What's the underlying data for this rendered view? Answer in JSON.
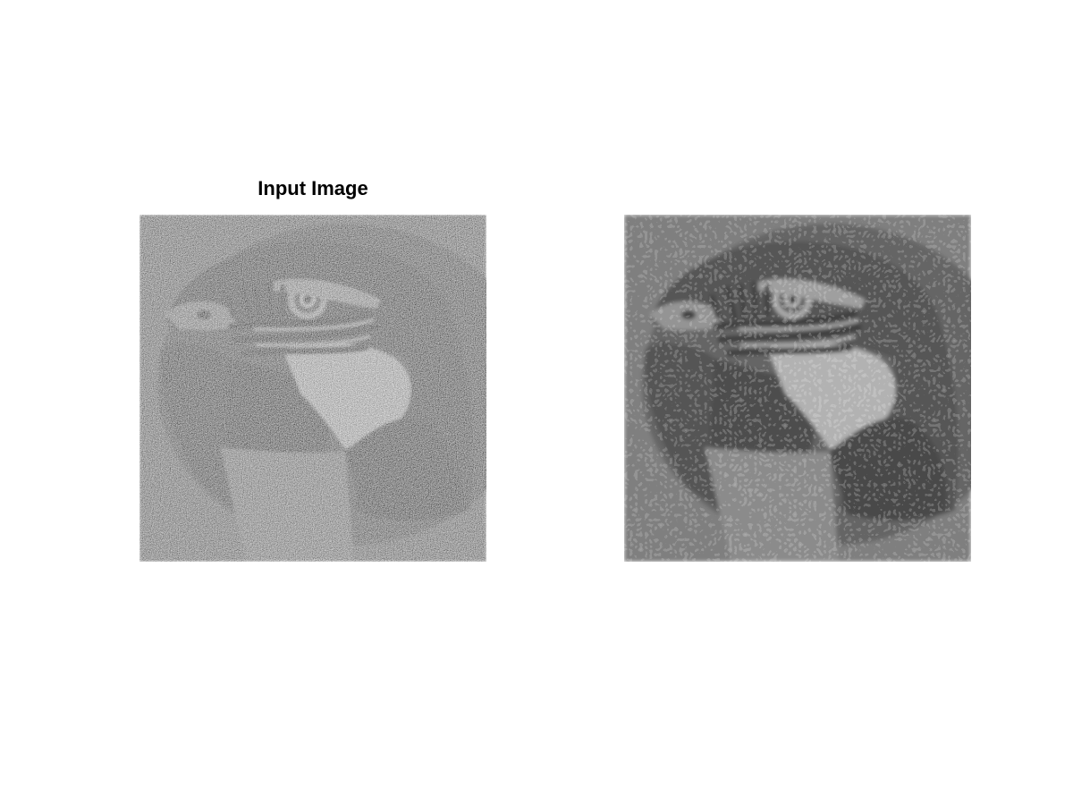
{
  "figure": {
    "panels": [
      {
        "title": "Input Image",
        "subject": "macaw-head",
        "rendering": "grayscale-noisy"
      },
      {
        "title": "",
        "subject": "macaw-head",
        "rendering": "grayscale-denoised-mosaic"
      }
    ],
    "colors": {
      "background": "#ffffff",
      "title": "#000000"
    }
  }
}
